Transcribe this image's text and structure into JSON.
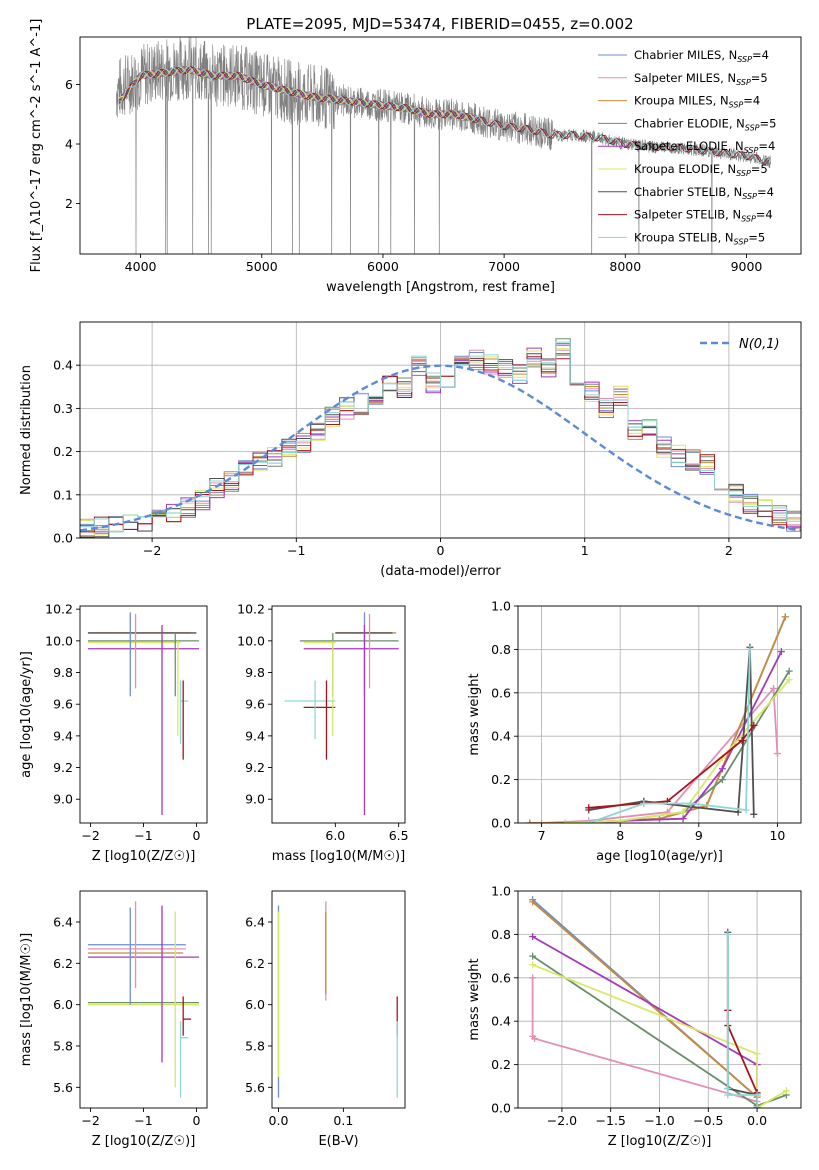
{
  "figure_title": "PLATE=2095, MJD=53474, FIBERID=0455, z=0.002",
  "colors": [
    "#6c8ed0",
    "#e38fb5",
    "#c98a3c",
    "#6b8f6b",
    "#a43ab8",
    "#d9e866",
    "#505050",
    "#a8141e",
    "#8fd6d6"
  ],
  "chart_data": [
    {
      "type": "line",
      "id": "spectrum",
      "title": "PLATE=2095, MJD=53474, FIBERID=0455, z=0.002",
      "xlabel": "wavelength [Angstrom, rest frame]",
      "ylabel": "Flux [f_λ10^-17 erg cm^-2 s^-1 A^-1]",
      "xlim": [
        3500,
        9450
      ],
      "ylim": [
        0.3,
        7.6
      ],
      "xticks": [
        4000,
        5000,
        6000,
        7000,
        8000,
        9000
      ],
      "yticks": [
        2,
        4,
        6
      ],
      "data_series": {
        "name": "",
        "color": "#808080",
        "x": [
          3800,
          4000,
          4200,
          4400,
          4600,
          4800,
          5000,
          5200,
          5400,
          5600,
          5800,
          6000,
          6200,
          6400,
          6600,
          6800,
          7000,
          7200,
          7400,
          7600,
          7800,
          8000,
          8200,
          8400,
          8600,
          8800,
          9000,
          9200
        ],
        "y": [
          5.8,
          6.3,
          6.5,
          6.6,
          6.3,
          6.3,
          6.0,
          5.8,
          5.6,
          5.5,
          5.4,
          5.3,
          5.2,
          5.0,
          5.0,
          4.8,
          4.6,
          4.5,
          4.3,
          4.3,
          4.2,
          4.0,
          3.9,
          3.9,
          3.8,
          3.7,
          3.6,
          3.4
        ]
      },
      "model_x": [
        3820,
        4000,
        4200,
        4400,
        4600,
        4800,
        5000,
        5200,
        5400,
        5600,
        5800,
        6000,
        6200,
        6400,
        6600,
        6800,
        7000,
        7200,
        7400,
        7600,
        7800,
        8000,
        8200,
        8400,
        8600,
        8800,
        9000,
        9200
      ],
      "model_y": [
        5.4,
        6.3,
        6.4,
        6.5,
        6.3,
        6.3,
        6.0,
        5.8,
        5.6,
        5.5,
        5.4,
        5.3,
        5.2,
        5.0,
        5.0,
        4.8,
        4.6,
        4.5,
        4.3,
        4.3,
        4.2,
        4.0,
        3.9,
        3.9,
        3.8,
        3.7,
        3.6,
        3.4
      ],
      "series": [
        {
          "name": "Chabrier MILES, N_SSP=4",
          "color": "#6c8ed0",
          "end": 7400
        },
        {
          "name": "Salpeter MILES, N_SSP=5",
          "color": "#e38fb5",
          "end": 7400
        },
        {
          "name": "Kroupa MILES, N_SSP=4",
          "color": "#c98a3c",
          "end": 7400
        },
        {
          "name": "Chabrier ELODIE, N_SSP=5",
          "color": "#6b8f6b",
          "end": 6800
        },
        {
          "name": "Salpeter ELODIE, N_SSP=4",
          "color": "#a43ab8",
          "end": 6800
        },
        {
          "name": "Kroupa ELODIE, N_SSP=5",
          "color": "#d9e866",
          "end": 6800
        },
        {
          "name": "Chabrier STELIB, N_SSP=4",
          "color": "#505050",
          "end": 9200
        },
        {
          "name": "Salpeter STELIB, N_SSP=4",
          "color": "#a8141e",
          "end": 9200
        },
        {
          "name": "Kroupa STELIB, N_SSP=5",
          "color": "#8fd6d6",
          "end": 9200
        }
      ],
      "legend": "top-right"
    },
    {
      "type": "line",
      "id": "residuals",
      "xlabel": "(data-model)/error",
      "ylabel": "Normed distribution",
      "xlim": [
        -2.5,
        2.5
      ],
      "ylim": [
        0,
        0.5
      ],
      "xticks": [
        -2,
        -1,
        0,
        1,
        2
      ],
      "yticks": [
        0.0,
        0.1,
        0.2,
        0.3,
        0.4
      ],
      "grid": true,
      "bins_start": -2.5,
      "bin_width": 0.1,
      "hist_base": [
        0.02,
        0.025,
        0.03,
        0.035,
        0.035,
        0.045,
        0.06,
        0.07,
        0.09,
        0.115,
        0.13,
        0.16,
        0.18,
        0.19,
        0.21,
        0.22,
        0.25,
        0.28,
        0.3,
        0.31,
        0.33,
        0.36,
        0.35,
        0.4,
        0.36,
        0.37,
        0.4,
        0.41,
        0.4,
        0.39,
        0.38,
        0.42,
        0.39,
        0.44,
        0.35,
        0.34,
        0.3,
        0.33,
        0.25,
        0.25,
        0.21,
        0.19,
        0.18,
        0.17,
        0.12,
        0.1,
        0.08,
        0.07,
        0.05,
        0.04
      ],
      "normal_legend": "N(0,1)",
      "legend": "top-right"
    },
    {
      "type": "scatter",
      "id": "age-vs-Z",
      "xlabel": "Z [log10(Z/Z☉)]",
      "ylabel": "age [log10(age/yr)]",
      "xlim": [
        -2.2,
        0.2
      ],
      "ylim": [
        8.85,
        10.22
      ],
      "xticks": [
        -2,
        -1,
        0
      ],
      "yticks": [
        9.0,
        9.2,
        9.4,
        9.6,
        9.8,
        10.0,
        10.2
      ],
      "hlines": [
        {
          "y": 10.05,
          "x0": -2.05,
          "x1": -0.1,
          "color": "#c98a3c"
        },
        {
          "y": 10.05,
          "x0": -2.05,
          "x1": 0.0,
          "color": "#505050"
        },
        {
          "y": 10.0,
          "x0": -2.05,
          "x1": 0.05,
          "color": "#6b8f6b"
        },
        {
          "y": 9.99,
          "x0": -2.05,
          "x1": -0.3,
          "color": "#d9e866"
        },
        {
          "y": 9.95,
          "x0": -2.05,
          "x1": 0.05,
          "color": "#a43ab8"
        },
        {
          "y": 9.62,
          "x0": -0.3,
          "x1": -0.15,
          "color": "#8fd6d6"
        }
      ],
      "vlines": [
        {
          "x": -1.25,
          "y0": 9.65,
          "y1": 10.18,
          "color": "#6c8ed0"
        },
        {
          "x": -1.15,
          "y0": 9.7,
          "y1": 10.17,
          "color": "#e38fb5"
        },
        {
          "x": -0.65,
          "y0": 8.9,
          "y1": 10.1,
          "color": "#a43ab8"
        },
        {
          "x": -0.4,
          "y0": 9.65,
          "y1": 10.05,
          "color": "#6b8f6b"
        },
        {
          "x": -0.35,
          "y0": 9.4,
          "y1": 10.0,
          "color": "#d9e866"
        },
        {
          "x": -0.25,
          "y0": 9.25,
          "y1": 9.75,
          "color": "#a8141e"
        },
        {
          "x": -0.3,
          "y0": 9.35,
          "y1": 9.75,
          "color": "#8fd6d6"
        }
      ]
    },
    {
      "type": "scatter",
      "id": "age-vs-mass",
      "xlabel": "mass [log10(M/M☉)]",
      "ylabel": "",
      "xlim": [
        5.5,
        6.55
      ],
      "ylim": [
        8.85,
        10.22
      ],
      "xticks": [
        6.0,
        6.5
      ],
      "yticks": [
        9.0,
        9.2,
        9.4,
        9.6,
        9.8,
        10.0,
        10.2
      ],
      "hlines": [
        {
          "y": 10.05,
          "x0": 6.0,
          "x1": 6.48,
          "color": "#c98a3c"
        },
        {
          "y": 10.05,
          "x0": 6.0,
          "x1": 6.45,
          "color": "#505050"
        },
        {
          "y": 10.0,
          "x0": 5.72,
          "x1": 6.5,
          "color": "#6b8f6b"
        },
        {
          "y": 9.99,
          "x0": 5.75,
          "x1": 6.0,
          "color": "#d9e866"
        },
        {
          "y": 9.95,
          "x0": 5.75,
          "x1": 6.5,
          "color": "#a43ab8"
        },
        {
          "y": 9.62,
          "x0": 5.6,
          "x1": 6.0,
          "color": "#8fd6d6"
        },
        {
          "y": 9.58,
          "x0": 5.75,
          "x1": 6.0,
          "color": "#a8141e"
        }
      ],
      "vlines": [
        {
          "x": 6.23,
          "y0": 9.65,
          "y1": 10.18,
          "color": "#6c8ed0"
        },
        {
          "x": 6.27,
          "y0": 9.7,
          "y1": 10.17,
          "color": "#e38fb5"
        },
        {
          "x": 6.23,
          "y0": 8.9,
          "y1": 10.1,
          "color": "#a43ab8"
        },
        {
          "x": 5.98,
          "y0": 9.65,
          "y1": 10.05,
          "color": "#6b8f6b"
        },
        {
          "x": 5.98,
          "y0": 9.4,
          "y1": 10.0,
          "color": "#d9e866"
        },
        {
          "x": 5.93,
          "y0": 9.25,
          "y1": 9.75,
          "color": "#a8141e"
        },
        {
          "x": 5.84,
          "y0": 9.38,
          "y1": 9.75,
          "color": "#8fd6d6"
        }
      ]
    },
    {
      "type": "line",
      "id": "weight-vs-age",
      "xlabel": "age [log10(age/yr)]",
      "ylabel": "mass weight",
      "xlim": [
        6.7,
        10.3
      ],
      "ylim": [
        0,
        1.0
      ],
      "xticks": [
        7,
        8,
        9,
        10
      ],
      "yticks": [
        0.0,
        0.2,
        0.4,
        0.6,
        0.8,
        1.0
      ],
      "grid": true,
      "series": [
        {
          "color": "#6c8ed0",
          "x": [
            6.85,
            7.6,
            8.5,
            9.1,
            10.1
          ],
          "y": [
            0.0,
            0.0,
            0.02,
            0.08,
            0.95
          ]
        },
        {
          "color": "#e38fb5",
          "x": [
            7.0,
            7.6,
            8.6,
            9.95,
            10.0
          ],
          "y": [
            0.0,
            0.01,
            0.05,
            0.62,
            0.32
          ]
        },
        {
          "color": "#c98a3c",
          "x": [
            6.85,
            7.6,
            8.5,
            9.1,
            10.1
          ],
          "y": [
            0.0,
            0.0,
            0.02,
            0.08,
            0.95
          ]
        },
        {
          "color": "#6b8f6b",
          "x": [
            7.3,
            8.0,
            8.8,
            9.3,
            10.15
          ],
          "y": [
            0.0,
            0.01,
            0.05,
            0.2,
            0.7
          ]
        },
        {
          "color": "#a43ab8",
          "x": [
            7.3,
            8.0,
            8.8,
            9.3,
            10.05
          ],
          "y": [
            0.0,
            0.01,
            0.02,
            0.25,
            0.79
          ]
        },
        {
          "color": "#d9e866",
          "x": [
            7.3,
            8.0,
            8.8,
            9.3,
            10.15
          ],
          "y": [
            0.0,
            0.01,
            0.05,
            0.3,
            0.66
          ]
        },
        {
          "color": "#505050",
          "x": [
            7.6,
            8.3,
            9.5,
            9.65,
            9.7
          ],
          "y": [
            0.06,
            0.1,
            0.05,
            0.81,
            0.04
          ]
        },
        {
          "color": "#a8141e",
          "x": [
            7.6,
            8.6,
            9.55,
            9.7
          ],
          "y": [
            0.07,
            0.1,
            0.38,
            0.45
          ]
        },
        {
          "color": "#8fd6d6",
          "x": [
            7.6,
            8.3,
            8.9,
            9.6,
            9.65
          ],
          "y": [
            0.0,
            0.09,
            0.09,
            0.06,
            0.8
          ]
        }
      ]
    },
    {
      "type": "scatter",
      "id": "mass-vs-Z",
      "xlabel": "Z [log10(Z/Z☉)]",
      "ylabel": "mass [log10(M/M☉)]",
      "xlim": [
        -2.2,
        0.2
      ],
      "ylim": [
        5.5,
        6.55
      ],
      "xticks": [
        -2,
        -1,
        0
      ],
      "yticks": [
        5.6,
        5.8,
        6.0,
        6.2,
        6.4
      ],
      "hlines": [
        {
          "y": 6.29,
          "x0": -2.05,
          "x1": -0.2,
          "color": "#6c8ed0"
        },
        {
          "y": 6.27,
          "x0": -2.05,
          "x1": -0.2,
          "color": "#e38fb5"
        },
        {
          "y": 6.25,
          "x0": -2.05,
          "x1": -0.25,
          "color": "#c98a3c"
        },
        {
          "y": 6.23,
          "x0": -2.05,
          "x1": 0.05,
          "color": "#a43ab8"
        },
        {
          "y": 6.01,
          "x0": -2.05,
          "x1": 0.05,
          "color": "#6b8f6b"
        },
        {
          "y": 6.0,
          "x0": -2.05,
          "x1": 0.05,
          "color": "#d9e866"
        },
        {
          "y": 5.93,
          "x0": -0.25,
          "x1": -0.1,
          "color": "#a8141e"
        },
        {
          "y": 5.84,
          "x0": -0.3,
          "x1": -0.15,
          "color": "#8fd6d6"
        }
      ],
      "vlines": [
        {
          "x": -1.25,
          "y0": 6.0,
          "y1": 6.47,
          "color": "#6c8ed0"
        },
        {
          "x": -1.15,
          "y0": 6.08,
          "y1": 6.5,
          "color": "#e38fb5"
        },
        {
          "x": -0.65,
          "y0": 5.72,
          "y1": 6.48,
          "color": "#a43ab8"
        },
        {
          "x": -0.4,
          "y0": 5.6,
          "y1": 6.45,
          "color": "#d9e866"
        },
        {
          "x": -0.25,
          "y0": 5.85,
          "y1": 6.04,
          "color": "#a8141e"
        },
        {
          "x": -0.3,
          "y0": 5.55,
          "y1": 5.92,
          "color": "#8fd6d6"
        }
      ]
    },
    {
      "type": "scatter",
      "id": "mass-vs-EBV",
      "xlabel": "E(B-V)",
      "ylabel": "",
      "xlim": [
        -0.01,
        0.195
      ],
      "ylim": [
        5.5,
        6.55
      ],
      "xticks": [
        0.0,
        0.1
      ],
      "yticks": [
        5.6,
        5.8,
        6.0,
        6.2,
        6.4
      ],
      "vlines": [
        {
          "x": 0.0,
          "y0": 5.55,
          "y1": 6.48,
          "color": "#6c8ed0"
        },
        {
          "x": 0.0,
          "y0": 5.65,
          "y1": 6.45,
          "color": "#d9e866"
        },
        {
          "x": 0.073,
          "y0": 6.02,
          "y1": 6.5,
          "color": "#e38fb5"
        },
        {
          "x": 0.073,
          "y0": 6.05,
          "y1": 6.45,
          "color": "#c98a3c"
        },
        {
          "x": 0.183,
          "y0": 5.85,
          "y1": 6.04,
          "color": "#a8141e"
        },
        {
          "x": 0.183,
          "y0": 5.55,
          "y1": 5.92,
          "color": "#8fd6d6"
        }
      ]
    },
    {
      "type": "line",
      "id": "weight-vs-Z",
      "xlabel": "Z [log10(Z/Z☉)]",
      "ylabel": "mass weight",
      "xlim": [
        -2.45,
        0.45
      ],
      "ylim": [
        0,
        1.0
      ],
      "xticks": [
        -2.0,
        -1.5,
        -1.0,
        -0.5,
        0.0
      ],
      "yticks": [
        0.0,
        0.2,
        0.4,
        0.6,
        0.8,
        1.0
      ],
      "grid": true,
      "series": [
        {
          "color": "#6c8ed0",
          "x": [
            -2.3,
            0.0,
            0.0
          ],
          "y": [
            0.96,
            0.05,
            0.0
          ]
        },
        {
          "color": "#e38fb5",
          "x": [
            -2.3,
            -2.3,
            -2.28,
            0.0,
            0.0
          ],
          "y": [
            0.6,
            0.33,
            0.32,
            0.03,
            0.0
          ]
        },
        {
          "color": "#c98a3c",
          "x": [
            -2.3,
            0.0,
            0.0
          ],
          "y": [
            0.95,
            0.05,
            0.0
          ]
        },
        {
          "color": "#6b8f6b",
          "x": [
            -2.3,
            0.0,
            0.3
          ],
          "y": [
            0.7,
            0.01,
            0.06
          ]
        },
        {
          "color": "#a43ab8",
          "x": [
            -2.3,
            0.0,
            0.0
          ],
          "y": [
            0.79,
            0.2,
            0.0
          ]
        },
        {
          "color": "#d9e866",
          "x": [
            -2.3,
            0.0,
            0.0,
            0.3
          ],
          "y": [
            0.66,
            0.25,
            0.0,
            0.08
          ]
        },
        {
          "color": "#505050",
          "x": [
            -0.3,
            -0.3,
            -0.3,
            0.0,
            0.0
          ],
          "y": [
            0.81,
            0.45,
            0.09,
            0.06,
            0.0
          ]
        },
        {
          "color": "#a8141e",
          "x": [
            -0.3,
            -0.3,
            0.0,
            0.0
          ],
          "y": [
            0.45,
            0.38,
            0.07,
            0.0
          ]
        },
        {
          "color": "#8fd6d6",
          "x": [
            -0.3,
            -0.3,
            -0.3,
            0.0,
            0.0
          ],
          "y": [
            0.8,
            0.09,
            0.06,
            0.06,
            0.0
          ]
        }
      ]
    }
  ]
}
